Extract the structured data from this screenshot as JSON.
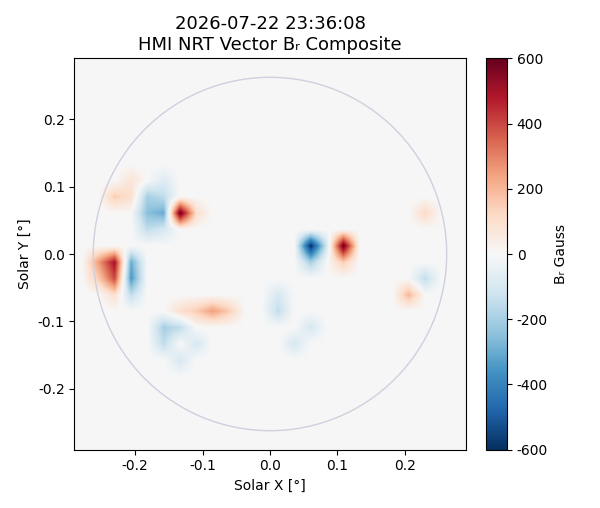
{
  "chart_data": {
    "type": "heatmap",
    "title": "2026-07-22 23:36:08\nHMI NRT Vector Bᵣ Composite",
    "x_label": "Solar X [°]",
    "y_label": "Solar Y [°]",
    "xlim": [
      -0.29,
      0.29
    ],
    "ylim": [
      -0.29,
      0.29
    ],
    "xticks": [
      -0.2,
      -0.1,
      0.0,
      0.1,
      0.2
    ],
    "yticks": [
      -0.2,
      -0.1,
      0.0,
      0.1,
      0.2
    ],
    "disk_radius": 0.262,
    "grid": false,
    "colorbar": {
      "label": "Bᵣ Gauss",
      "range": [
        -600,
        600
      ],
      "ticks": [
        -600,
        -400,
        -200,
        0,
        200,
        400,
        600
      ]
    },
    "cells": [
      [
        0,
        0,
        0,
        0,
        0,
        0,
        0,
        0,
        0,
        0,
        0,
        0,
        0,
        0,
        0,
        0,
        0,
        0,
        0,
        0,
        0,
        0,
        0,
        0
      ],
      [
        0,
        0,
        0,
        0,
        0,
        0,
        0,
        0,
        0,
        0,
        0,
        0,
        0,
        0,
        0,
        0,
        0,
        0,
        0,
        0,
        0,
        0,
        0,
        0
      ],
      [
        0,
        0,
        0,
        0,
        0,
        0,
        0,
        0,
        0,
        0,
        0,
        0,
        0,
        0,
        0,
        0,
        0,
        0,
        0,
        0,
        0,
        0,
        0,
        0
      ],
      [
        0,
        0,
        0,
        0,
        0,
        0,
        0,
        0,
        0,
        0,
        0,
        0,
        0,
        0,
        0,
        0,
        0,
        0,
        0,
        0,
        0,
        0,
        0,
        0
      ],
      [
        0,
        0,
        0,
        0,
        0,
        0,
        0,
        0,
        0,
        0,
        0,
        0,
        0,
        0,
        0,
        0,
        0,
        0,
        0,
        0,
        0,
        0,
        0,
        0
      ],
      [
        0,
        0,
        0,
        0,
        0,
        0,
        0,
        0,
        0,
        0,
        0,
        0,
        0,
        0,
        0,
        0,
        0,
        0,
        0,
        0,
        0,
        0,
        0,
        0
      ],
      [
        0,
        0,
        0,
        0,
        0,
        0,
        0,
        0,
        0,
        0,
        0,
        0,
        0,
        0,
        0,
        0,
        0,
        0,
        0,
        0,
        0,
        0,
        0,
        0
      ],
      [
        0,
        0,
        0,
        80,
        0,
        -80,
        0,
        0,
        0,
        0,
        0,
        0,
        0,
        0,
        0,
        0,
        0,
        0,
        0,
        0,
        0,
        0,
        0,
        0
      ],
      [
        0,
        0,
        150,
        100,
        -200,
        -150,
        0,
        0,
        0,
        0,
        0,
        0,
        0,
        0,
        0,
        0,
        0,
        0,
        0,
        0,
        0,
        0,
        0,
        0
      ],
      [
        0,
        0,
        0,
        0,
        -250,
        -300,
        600,
        100,
        0,
        0,
        0,
        0,
        0,
        0,
        0,
        0,
        0,
        0,
        0,
        0,
        0,
        120,
        0,
        0
      ],
      [
        0,
        0,
        0,
        0,
        -150,
        -100,
        0,
        0,
        0,
        0,
        0,
        0,
        0,
        0,
        0,
        0,
        0,
        0,
        0,
        0,
        0,
        0,
        0,
        0
      ],
      [
        0,
        0,
        0,
        0,
        0,
        0,
        0,
        0,
        0,
        0,
        0,
        0,
        0,
        0,
        -600,
        -100,
        600,
        0,
        0,
        0,
        0,
        0,
        0,
        0
      ],
      [
        0,
        250,
        500,
        -300,
        0,
        0,
        0,
        0,
        0,
        0,
        0,
        0,
        0,
        0,
        -200,
        0,
        150,
        0,
        0,
        0,
        0,
        0,
        0,
        0
      ],
      [
        0,
        150,
        400,
        -350,
        0,
        0,
        0,
        0,
        0,
        0,
        0,
        0,
        0,
        0,
        0,
        0,
        0,
        0,
        0,
        0,
        0,
        -150,
        0,
        0
      ],
      [
        0,
        0,
        100,
        -150,
        0,
        0,
        0,
        0,
        0,
        0,
        0,
        0,
        -100,
        0,
        0,
        0,
        0,
        0,
        0,
        0,
        200,
        0,
        0,
        0
      ],
      [
        0,
        0,
        0,
        0,
        0,
        0,
        100,
        150,
        250,
        150,
        0,
        0,
        -150,
        0,
        0,
        0,
        0,
        0,
        0,
        0,
        0,
        0,
        0,
        0
      ],
      [
        0,
        0,
        0,
        0,
        0,
        -200,
        -150,
        0,
        0,
        0,
        0,
        0,
        0,
        0,
        -100,
        0,
        0,
        0,
        0,
        0,
        0,
        0,
        0,
        0
      ],
      [
        0,
        0,
        0,
        0,
        0,
        -150,
        0,
        -100,
        0,
        0,
        0,
        0,
        0,
        -100,
        0,
        0,
        0,
        0,
        0,
        0,
        0,
        0,
        0,
        0
      ],
      [
        0,
        0,
        0,
        0,
        0,
        0,
        -100,
        0,
        0,
        0,
        0,
        0,
        0,
        0,
        0,
        0,
        0,
        0,
        0,
        0,
        0,
        0,
        0,
        0
      ],
      [
        0,
        0,
        0,
        0,
        0,
        0,
        0,
        0,
        0,
        0,
        0,
        0,
        0,
        0,
        0,
        0,
        0,
        0,
        0,
        0,
        0,
        0,
        0,
        0
      ],
      [
        0,
        0,
        0,
        0,
        0,
        0,
        0,
        0,
        0,
        0,
        0,
        0,
        0,
        0,
        0,
        0,
        0,
        0,
        0,
        0,
        0,
        0,
        0,
        0
      ],
      [
        0,
        0,
        0,
        0,
        0,
        0,
        0,
        0,
        0,
        0,
        0,
        0,
        0,
        0,
        0,
        0,
        0,
        0,
        0,
        0,
        0,
        0,
        0,
        0
      ],
      [
        0,
        0,
        0,
        0,
        0,
        0,
        0,
        0,
        0,
        0,
        0,
        0,
        0,
        0,
        0,
        0,
        0,
        0,
        0,
        0,
        0,
        0,
        0,
        0
      ],
      [
        0,
        0,
        0,
        0,
        0,
        0,
        0,
        0,
        0,
        0,
        0,
        0,
        0,
        0,
        0,
        0,
        0,
        0,
        0,
        0,
        0,
        0,
        0,
        0
      ]
    ]
  }
}
